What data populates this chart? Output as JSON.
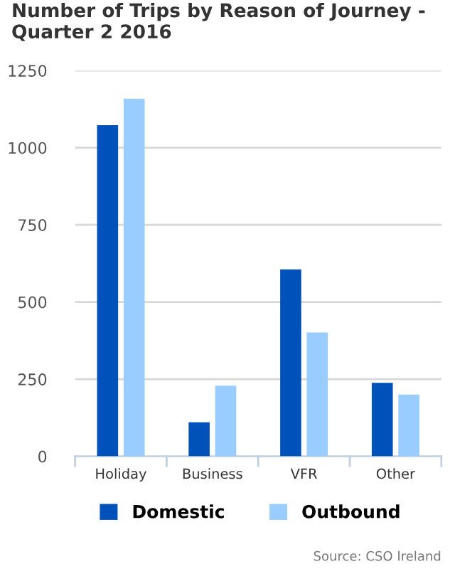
{
  "chart_data": {
    "type": "bar",
    "title": "Number of Trips by Reason of Journey -\nQuarter 2 2016",
    "categories": [
      "Holiday",
      "Business",
      "VFR",
      "Other"
    ],
    "series": [
      {
        "name": "Domestic",
        "color": "#0052bb",
        "values": [
          1073,
          110,
          606,
          238
        ]
      },
      {
        "name": "Outbound",
        "color": "#99ccff",
        "values": [
          1159,
          229,
          401,
          200
        ]
      }
    ],
    "ylim": [
      0,
      1250
    ],
    "yticks": [
      0,
      250,
      500,
      750,
      1000,
      1250
    ],
    "grid": "y",
    "legend": "bottom",
    "annotations": [
      "Source: CSO Ireland"
    ]
  }
}
